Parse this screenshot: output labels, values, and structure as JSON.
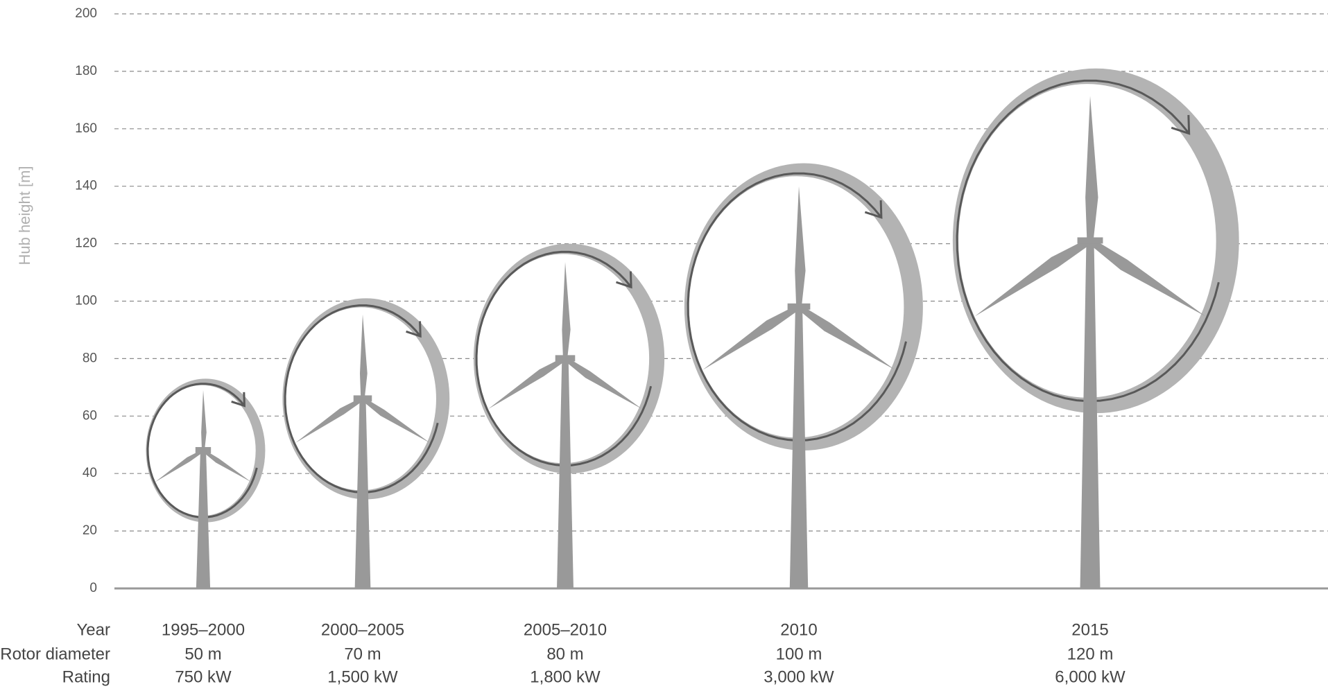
{
  "chart_data": {
    "type": "turbine",
    "y_label": "Hub height [m]",
    "ylim": [
      0,
      200
    ],
    "yticks": [
      0,
      20,
      40,
      60,
      80,
      100,
      120,
      140,
      160,
      180,
      200
    ],
    "grid": true,
    "category_label": "Year",
    "categories": [
      "1995–2000",
      "2000–2005",
      "2005–2010",
      "2010",
      "2015"
    ],
    "values": [
      48,
      66,
      80,
      98,
      121
    ],
    "rotor_diameter": {
      "label": "Rotor diameter",
      "values": [
        50,
        70,
        80,
        100,
        120
      ],
      "value_labels": [
        "50 m",
        "70 m",
        "80 m",
        "100 m",
        "120 m"
      ]
    },
    "rating": {
      "label": "Rating",
      "values": [
        "750 kW",
        "1,500 kW",
        "1,800 kW",
        "3,000 kW",
        "6,000 kW"
      ]
    },
    "color": "#999999",
    "ring_color": "#b3b3b3",
    "arrow_color": "#595959"
  }
}
